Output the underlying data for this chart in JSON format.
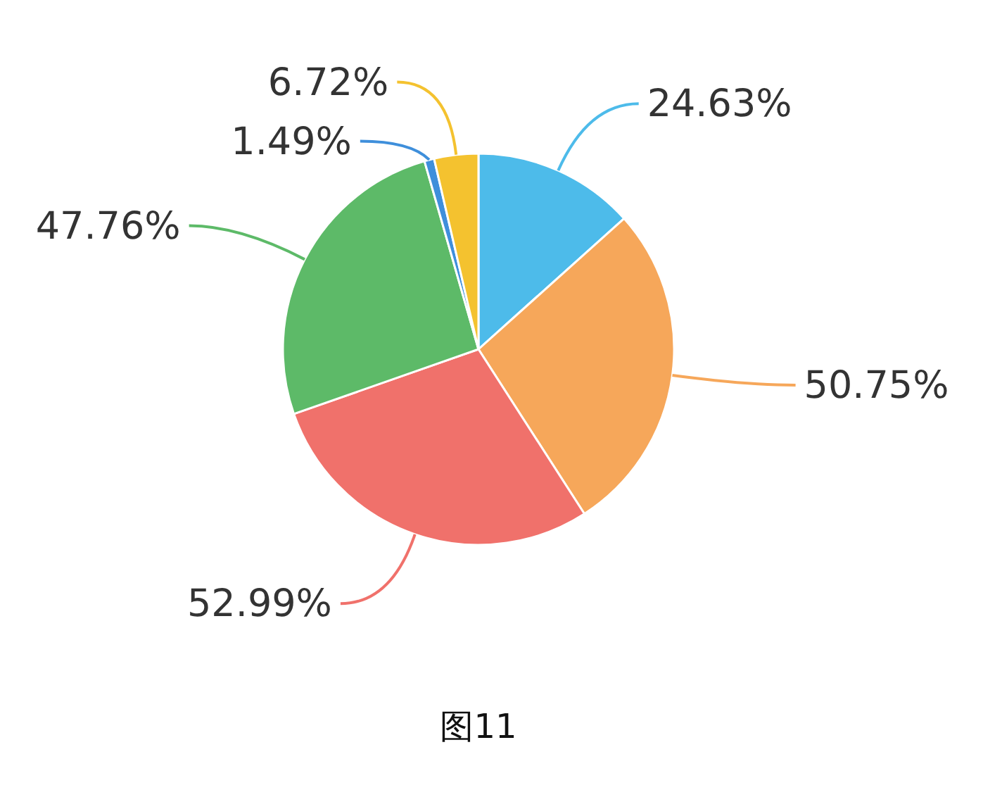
{
  "chart_data": {
    "type": "pie",
    "categories": [
      null,
      null,
      null,
      null,
      null,
      null
    ],
    "values": [
      24.63,
      50.75,
      52.99,
      47.76,
      1.49,
      6.72
    ],
    "colors": [
      "#4dbbea",
      "#f6a75a",
      "#f0716b",
      "#5dba68",
      "#3f8fdb",
      "#f4c22f"
    ],
    "value_labels": [
      "24.63%",
      "50.75%",
      "52.99%",
      "47.76%",
      "1.49%",
      "6.72%"
    ],
    "annotations": [
      "图11"
    ]
  }
}
